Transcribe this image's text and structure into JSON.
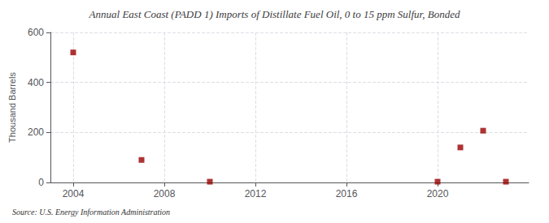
{
  "chart_data": {
    "type": "scatter",
    "title": "Annual East Coast (PADD 1) Imports of Distillate Fuel Oil, 0 to 15 ppm Sulfur, Bonded",
    "ylabel": "Thousand Barrels",
    "source": "Source: U.S. Energy Information Administration",
    "x": [
      2004,
      2007,
      2010,
      2020,
      2021,
      2022,
      2023
    ],
    "values": [
      520,
      90,
      3,
      3,
      140,
      207,
      3
    ],
    "color": "#990000",
    "marker": "square",
    "xlim": [
      2003,
      2024
    ],
    "xticks": [
      2004,
      2008,
      2012,
      2016,
      2020
    ],
    "ylim": [
      0,
      600
    ],
    "yticks": [
      0,
      200,
      400,
      600
    ],
    "grid": true
  }
}
